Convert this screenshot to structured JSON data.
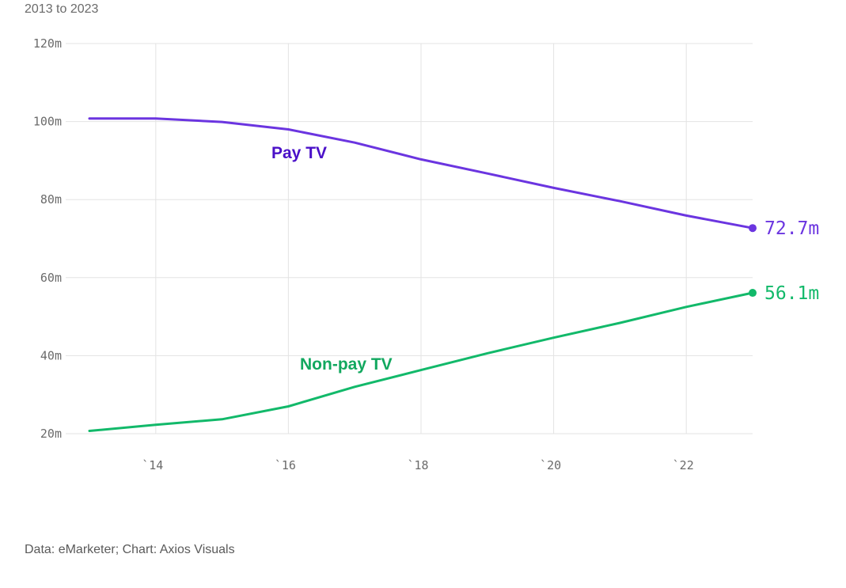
{
  "subtitle": "2013 to 2023",
  "source": "Data: eMarketer; Chart: Axios Visuals",
  "chart_data": {
    "type": "line",
    "title": "",
    "subtitle": "2013 to 2023",
    "xlabel": "",
    "ylabel": "",
    "x": [
      2013,
      2014,
      2015,
      2016,
      2017,
      2018,
      2019,
      2020,
      2021,
      2022,
      2023
    ],
    "x_ticks": [
      2014,
      2016,
      2018,
      2020,
      2022
    ],
    "x_tick_labels": [
      "`14",
      "`16",
      "`18",
      "`20",
      "`22"
    ],
    "xlim": [
      2013,
      2023
    ],
    "y_ticks": [
      20,
      40,
      60,
      80,
      100,
      120
    ],
    "y_tick_labels": [
      "20m",
      "40m",
      "60m",
      "80m",
      "100m",
      "120m"
    ],
    "ylim": [
      20,
      120
    ],
    "grid": true,
    "legend": "none",
    "series": [
      {
        "name": "Pay TV",
        "color": "#6b35e0",
        "label_color": "#4a10c8",
        "values": [
          100.8,
          100.8,
          99.9,
          98.0,
          94.6,
          90.3,
          86.7,
          83.0,
          79.6,
          75.9,
          72.7
        ],
        "end_label": "72.7m"
      },
      {
        "name": "Non-pay TV",
        "color": "#12b96a",
        "label_color": "#12a85f",
        "values": [
          20.7,
          22.3,
          23.7,
          27.0,
          32.0,
          36.3,
          40.6,
          44.6,
          48.4,
          52.5,
          56.1
        ],
        "end_label": "56.1m"
      }
    ]
  }
}
